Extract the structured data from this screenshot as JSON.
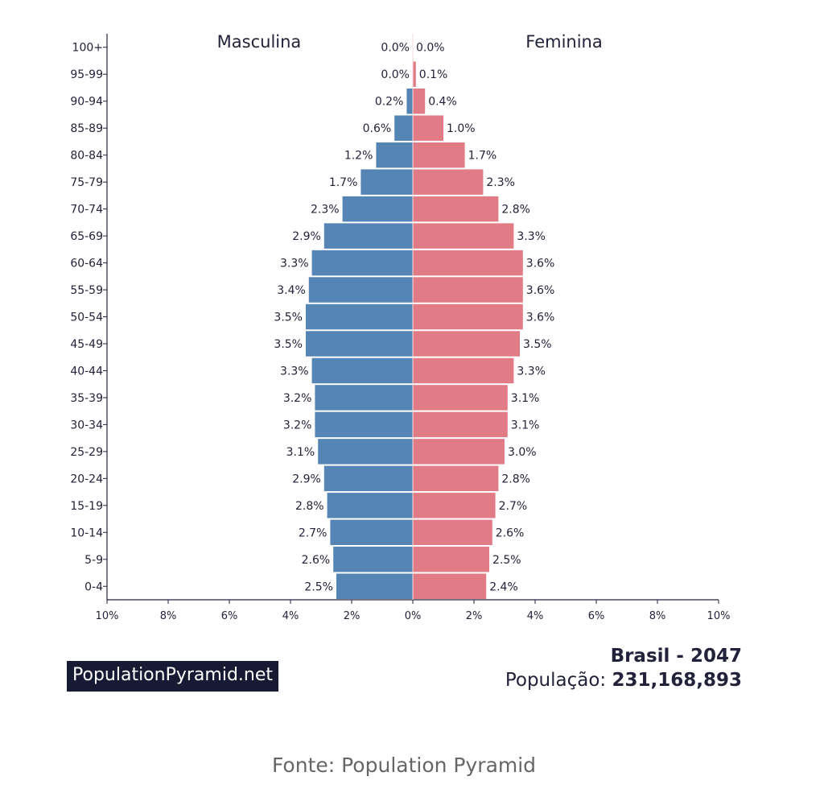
{
  "chart_data": {
    "type": "bar",
    "subtype": "population-pyramid",
    "categories": [
      "100+",
      "95-99",
      "90-94",
      "85-89",
      "80-84",
      "75-79",
      "70-74",
      "65-69",
      "60-64",
      "55-59",
      "50-54",
      "45-49",
      "40-44",
      "35-39",
      "30-34",
      "25-29",
      "20-24",
      "15-19",
      "10-14",
      "5-9",
      "0-4"
    ],
    "series": [
      {
        "name": "Masculina",
        "color": "#5585b5",
        "values": [
          0.0,
          0.0,
          0.2,
          0.6,
          1.2,
          1.7,
          2.3,
          2.9,
          3.3,
          3.4,
          3.5,
          3.5,
          3.3,
          3.2,
          3.2,
          3.1,
          2.9,
          2.8,
          2.7,
          2.6,
          2.5
        ],
        "labels": [
          "0.0%",
          "0.0%",
          "0.2%",
          "0.6%",
          "1.2%",
          "1.7%",
          "2.3%",
          "2.9%",
          "3.3%",
          "3.4%",
          "3.5%",
          "3.5%",
          "3.3%",
          "3.2%",
          "3.2%",
          "3.1%",
          "2.9%",
          "2.8%",
          "2.7%",
          "2.6%",
          "2.5%"
        ]
      },
      {
        "name": "Feminina",
        "color": "#e17c87",
        "values": [
          0.0,
          0.1,
          0.4,
          1.0,
          1.7,
          2.3,
          2.8,
          3.3,
          3.6,
          3.6,
          3.6,
          3.5,
          3.3,
          3.1,
          3.1,
          3.0,
          2.8,
          2.7,
          2.6,
          2.5,
          2.4
        ],
        "labels": [
          "0.0%",
          "0.1%",
          "0.4%",
          "1.0%",
          "1.7%",
          "2.3%",
          "2.8%",
          "3.3%",
          "3.6%",
          "3.6%",
          "3.6%",
          "3.5%",
          "3.3%",
          "3.1%",
          "3.1%",
          "3.0%",
          "2.8%",
          "2.7%",
          "2.6%",
          "2.5%",
          "2.4%"
        ]
      }
    ],
    "xlim": [
      -10,
      10
    ],
    "xticks": [
      -10,
      -8,
      -6,
      -4,
      -2,
      0,
      2,
      4,
      6,
      8,
      10
    ],
    "xtick_labels": [
      "10%",
      "8%",
      "6%",
      "4%",
      "2%",
      "0%",
      "2%",
      "4%",
      "6%",
      "8%",
      "10%"
    ],
    "left_title": "Masculina",
    "right_title": "Feminina",
    "xlabel": "",
    "ylabel": ""
  },
  "brand": "PopulationPyramid.net",
  "info": {
    "title": "Brasil - 2047",
    "population_label": "População:",
    "population_value": "231,168,893"
  },
  "source": "Fonte: Population Pyramid"
}
